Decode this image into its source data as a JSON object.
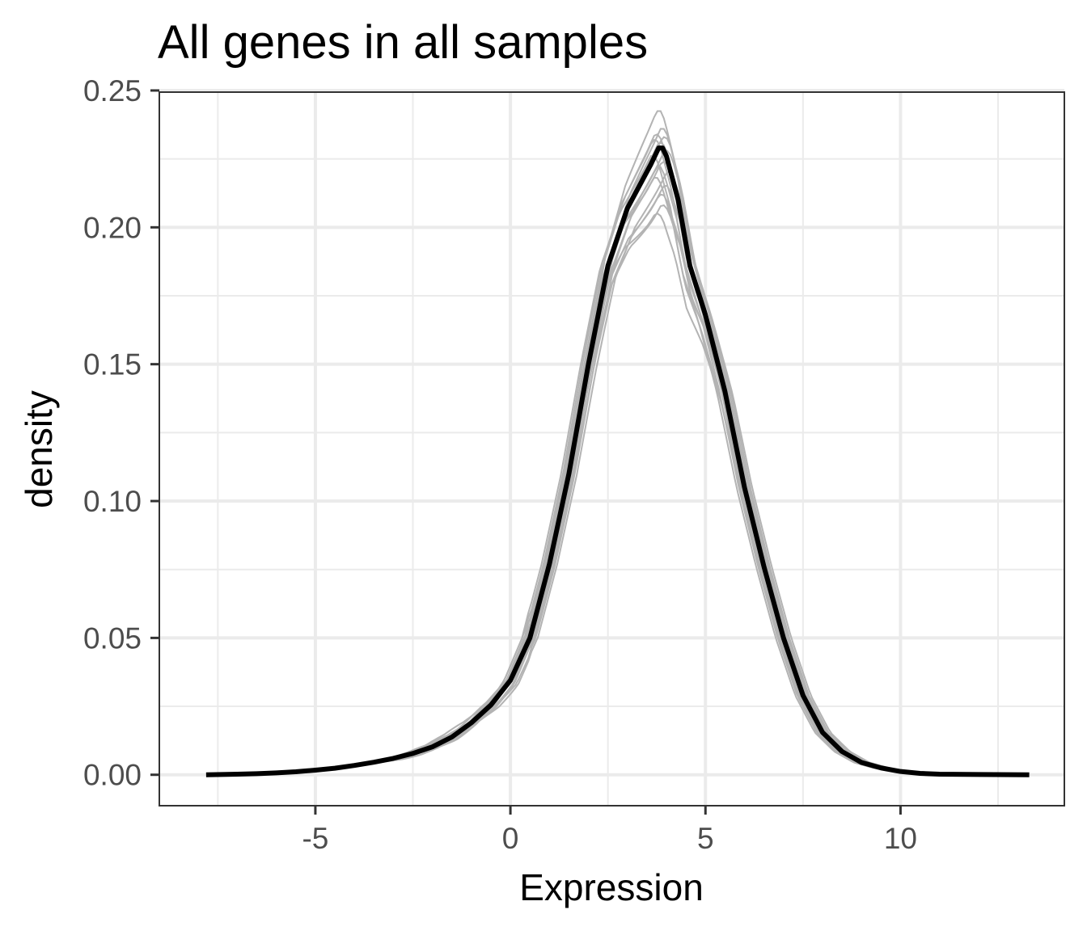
{
  "chart_data": {
    "type": "line",
    "title": "All genes in all samples",
    "xlabel": "Expression",
    "ylabel": "density",
    "xlim": [
      -9.0,
      14.2
    ],
    "ylim": [
      -0.0113,
      0.2494
    ],
    "x_ticks": [
      -5,
      0,
      5,
      10
    ],
    "x_tick_labels": [
      "-5",
      "0",
      "5",
      "10"
    ],
    "y_ticks": [
      0.0,
      0.05,
      0.1,
      0.15,
      0.2,
      0.25
    ],
    "y_tick_labels": [
      "0.00",
      "0.05",
      "0.10",
      "0.15",
      "0.20",
      "0.25"
    ],
    "grid": true,
    "legend": "none",
    "background": "#ffffff",
    "grid_color": "#ebebeb",
    "panel_border_color": "#333333",
    "sample_color": "#b3b3b3",
    "summary_color": "#000000",
    "summary": {
      "x": [
        -7.8,
        -7.0,
        -6.5,
        -6.0,
        -5.5,
        -5.0,
        -4.5,
        -4.0,
        -3.5,
        -3.0,
        -2.5,
        -2.0,
        -1.5,
        -1.0,
        -0.5,
        0.0,
        0.5,
        1.0,
        1.5,
        2.0,
        2.5,
        3.0,
        3.3,
        3.6,
        3.8,
        3.9,
        4.0,
        4.3,
        4.6,
        5.0,
        5.5,
        6.0,
        6.5,
        7.0,
        7.5,
        8.0,
        8.5,
        9.0,
        9.5,
        10.0,
        10.5,
        11.0,
        12.0,
        13.3
      ],
      "y": [
        0.0,
        0.0002,
        0.0004,
        0.0007,
        0.0011,
        0.0017,
        0.0024,
        0.0034,
        0.0046,
        0.006,
        0.0078,
        0.0102,
        0.0138,
        0.019,
        0.0255,
        0.0345,
        0.05,
        0.077,
        0.11,
        0.15,
        0.186,
        0.207,
        0.215,
        0.223,
        0.229,
        0.229,
        0.226,
        0.21,
        0.186,
        0.168,
        0.14,
        0.105,
        0.076,
        0.05,
        0.029,
        0.0155,
        0.0085,
        0.0045,
        0.0025,
        0.0012,
        0.0005,
        0.0002,
        0.0001,
        0.0
      ]
    },
    "series": [
      {
        "peak_x": 3.85,
        "peak_y": 0.2425,
        "shift": -0.05
      },
      {
        "peak_x": 3.9,
        "peak_y": 0.236,
        "shift": 0.05
      },
      {
        "peak_x": 3.8,
        "peak_y": 0.234,
        "shift": -0.1
      },
      {
        "peak_x": 3.95,
        "peak_y": 0.233,
        "shift": 0.1
      },
      {
        "peak_x": 3.75,
        "peak_y": 0.232,
        "shift": -0.15
      },
      {
        "peak_x": 3.85,
        "peak_y": 0.231,
        "shift": 0.0
      },
      {
        "peak_x": 4.0,
        "peak_y": 0.228,
        "shift": 0.15
      },
      {
        "peak_x": 3.7,
        "peak_y": 0.226,
        "shift": -0.2
      },
      {
        "peak_x": 3.9,
        "peak_y": 0.224,
        "shift": 0.08
      },
      {
        "peak_x": 3.8,
        "peak_y": 0.222,
        "shift": -0.05
      },
      {
        "peak_x": 4.05,
        "peak_y": 0.22,
        "shift": 0.2
      },
      {
        "peak_x": 3.75,
        "peak_y": 0.218,
        "shift": -0.12
      },
      {
        "peak_x": 3.95,
        "peak_y": 0.215,
        "shift": 0.12
      },
      {
        "peak_x": 3.85,
        "peak_y": 0.212,
        "shift": 0.02
      },
      {
        "peak_x": 3.9,
        "peak_y": 0.208,
        "shift": 0.06
      },
      {
        "peak_x": 3.8,
        "peak_y": 0.205,
        "shift": -0.08
      }
    ]
  }
}
